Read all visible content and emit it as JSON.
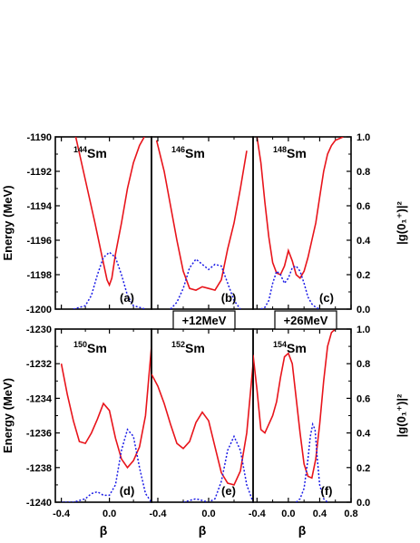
{
  "chart_data": {
    "type": "line",
    "layout": "2 rows x 3 columns, shared axes",
    "xlabel": "β",
    "x_ticks": [
      "-0.4",
      "0.0",
      "0.4",
      "0.8"
    ],
    "x_tick_values": [
      -0.4,
      0.0,
      0.4,
      0.8
    ],
    "rows": [
      {
        "ylabel": "Energy (MeV)",
        "ylim": [
          -1200,
          -1190
        ],
        "y_ticks": [
          "-1190",
          "-1192",
          "-1194",
          "-1196",
          "-1198",
          "-1200"
        ],
        "y_tick_values": [
          -1190,
          -1192,
          -1194,
          -1196,
          -1198,
          -1200
        ],
        "y2label": "|g(0₁⁺)|²",
        "y2lim": [
          0.0,
          1.0
        ],
        "y2_ticks": [
          "1.0",
          "0.8",
          "0.6",
          "0.4",
          "0.2",
          "0.0"
        ],
        "y2_tick_values": [
          1.0,
          0.8,
          0.6,
          0.4,
          0.2,
          0.0
        ]
      },
      {
        "ylabel": "Energy (MeV)",
        "ylim": [
          -1240,
          -1230
        ],
        "y_ticks": [
          "-1230",
          "-1232",
          "-1234",
          "-1236",
          "-1238",
          "-1240"
        ],
        "y_tick_values": [
          -1230,
          -1232,
          -1234,
          -1236,
          -1238,
          -1240
        ],
        "y2label": "|g(0₁⁺)|²",
        "y2lim": [
          0.0,
          1.0
        ],
        "y2_ticks": [
          "1.0",
          "0.8",
          "0.6",
          "0.4",
          "0.2",
          "0.0"
        ],
        "y2_tick_values": [
          1.0,
          0.8,
          0.6,
          0.4,
          0.2,
          0.0
        ]
      }
    ],
    "shift_labels": {
      "b": "+12MeV",
      "c": "+26MeV"
    },
    "series_style": {
      "energy": {
        "color": "#e8141b",
        "dash": "solid"
      },
      "wavefunction": {
        "color": "#1a1ae6",
        "dash": "dotted"
      }
    },
    "panels": [
      {
        "id": "a",
        "label": "(a)",
        "mass": "144",
        "element": "Sm",
        "row": 0,
        "col": 0,
        "xlim": [
          -0.45,
          0.35
        ],
        "energy": {
          "x": [
            -0.28,
            -0.2,
            -0.12,
            -0.06,
            -0.02,
            0.0,
            0.02,
            0.05,
            0.1,
            0.15,
            0.2,
            0.25,
            0.29
          ],
          "y": [
            -1190.0,
            -1192.5,
            -1195.0,
            -1197.0,
            -1198.3,
            -1198.6,
            -1198.2,
            -1196.8,
            -1195.0,
            -1193.0,
            -1191.5,
            -1190.5,
            -1190.0
          ]
        },
        "wavefunction": {
          "x": [
            -0.3,
            -0.2,
            -0.15,
            -0.1,
            -0.05,
            0.0,
            0.05,
            0.1,
            0.15,
            0.2,
            0.3
          ],
          "y": [
            0.0,
            0.02,
            0.08,
            0.2,
            0.3,
            0.33,
            0.3,
            0.2,
            0.08,
            0.02,
            0.0
          ]
        }
      },
      {
        "id": "b",
        "label": "(b)",
        "mass": "146",
        "element": "Sm",
        "row": 0,
        "col": 1,
        "xlim": [
          -0.45,
          0.35
        ],
        "energy": {
          "x": [
            -0.41,
            -0.35,
            -0.3,
            -0.25,
            -0.2,
            -0.15,
            -0.1,
            -0.05,
            0.0,
            0.05,
            0.1,
            0.15,
            0.2,
            0.25,
            0.3
          ],
          "y": [
            -1190.2,
            -1192.0,
            -1194.0,
            -1196.0,
            -1197.8,
            -1198.8,
            -1198.9,
            -1198.7,
            -1198.8,
            -1198.9,
            -1198.3,
            -1196.5,
            -1195.0,
            -1193.0,
            -1190.8
          ]
        },
        "wavefunction": {
          "x": [
            -0.3,
            -0.25,
            -0.2,
            -0.15,
            -0.1,
            -0.05,
            0.0,
            0.05,
            0.1,
            0.15,
            0.2,
            0.25
          ],
          "y": [
            0.0,
            0.04,
            0.12,
            0.24,
            0.29,
            0.26,
            0.23,
            0.26,
            0.25,
            0.15,
            0.05,
            0.0
          ]
        }
      },
      {
        "id": "c",
        "label": "(c)",
        "mass": "148",
        "element": "Sm",
        "row": 0,
        "col": 2,
        "xlim": [
          -0.45,
          0.8
        ],
        "energy": {
          "x": [
            -0.4,
            -0.35,
            -0.3,
            -0.25,
            -0.2,
            -0.15,
            -0.1,
            -0.05,
            0.0,
            0.05,
            0.1,
            0.15,
            0.2,
            0.25,
            0.3,
            0.35,
            0.4,
            0.45,
            0.5,
            0.55,
            0.6,
            0.7
          ],
          "y": [
            -1190.0,
            -1191.5,
            -1193.8,
            -1195.8,
            -1197.3,
            -1197.9,
            -1198.0,
            -1197.5,
            -1196.6,
            -1197.2,
            -1198.0,
            -1198.2,
            -1197.8,
            -1197.0,
            -1196.0,
            -1195.0,
            -1193.5,
            -1192.0,
            -1191.0,
            -1190.5,
            -1190.2,
            -1190.0
          ]
        },
        "wavefunction": {
          "x": [
            -0.35,
            -0.3,
            -0.25,
            -0.2,
            -0.15,
            -0.1,
            -0.05,
            0.0,
            0.05,
            0.1,
            0.15,
            0.2,
            0.25,
            0.3,
            0.35,
            0.4
          ],
          "y": [
            0.0,
            0.01,
            0.05,
            0.15,
            0.22,
            0.2,
            0.15,
            0.18,
            0.24,
            0.25,
            0.22,
            0.15,
            0.07,
            0.03,
            0.01,
            0.0
          ]
        }
      },
      {
        "id": "d",
        "label": "(d)",
        "mass": "150",
        "element": "Sm",
        "row": 1,
        "col": 0,
        "xlim": [
          -0.45,
          0.35
        ],
        "energy": {
          "x": [
            -0.4,
            -0.35,
            -0.3,
            -0.25,
            -0.2,
            -0.15,
            -0.1,
            -0.05,
            0.0,
            0.05,
            0.1,
            0.15,
            0.2,
            0.25,
            0.3,
            0.35
          ],
          "y": [
            -1232.0,
            -1233.8,
            -1235.3,
            -1236.5,
            -1236.6,
            -1236.0,
            -1235.2,
            -1234.3,
            -1234.7,
            -1236.3,
            -1237.5,
            -1238.0,
            -1237.6,
            -1236.8,
            -1235.0,
            -1231.0
          ]
        },
        "wavefunction": {
          "x": [
            -0.4,
            -0.3,
            -0.2,
            -0.15,
            -0.1,
            -0.05,
            0.0,
            0.05,
            0.1,
            0.15,
            0.2,
            0.25,
            0.3,
            0.35
          ],
          "y": [
            0.0,
            0.0,
            0.02,
            0.05,
            0.06,
            0.04,
            0.04,
            0.1,
            0.3,
            0.42,
            0.38,
            0.2,
            0.05,
            0.0
          ]
        }
      },
      {
        "id": "e",
        "label": "(e)",
        "mass": "152",
        "element": "Sm",
        "row": 1,
        "col": 1,
        "xlim": [
          -0.45,
          0.35
        ],
        "energy": {
          "x": [
            -0.45,
            -0.4,
            -0.35,
            -0.3,
            -0.25,
            -0.2,
            -0.15,
            -0.1,
            -0.05,
            0.0,
            0.05,
            0.1,
            0.15,
            0.2,
            0.25,
            0.3,
            0.35
          ],
          "y": [
            -1232.6,
            -1233.3,
            -1234.3,
            -1235.5,
            -1236.6,
            -1236.9,
            -1236.5,
            -1235.4,
            -1234.8,
            -1235.3,
            -1236.8,
            -1238.3,
            -1238.9,
            -1239.0,
            -1238.2,
            -1236.0,
            -1232.0
          ]
        },
        "wavefunction": {
          "x": [
            -0.2,
            -0.15,
            -0.1,
            -0.05,
            0.0,
            0.05,
            0.1,
            0.15,
            0.2,
            0.25,
            0.3,
            0.35
          ],
          "y": [
            0.0,
            0.01,
            0.02,
            0.01,
            0.0,
            0.02,
            0.12,
            0.3,
            0.38,
            0.3,
            0.1,
            0.0
          ]
        }
      },
      {
        "id": "f",
        "label": "(f)",
        "mass": "154",
        "element": "Sm",
        "row": 1,
        "col": 2,
        "xlim": [
          -0.45,
          0.8
        ],
        "energy": {
          "x": [
            -0.45,
            -0.4,
            -0.35,
            -0.3,
            -0.25,
            -0.2,
            -0.15,
            -0.1,
            -0.05,
            0.0,
            0.05,
            0.1,
            0.15,
            0.2,
            0.25,
            0.3,
            0.35,
            0.4,
            0.45,
            0.5,
            0.55,
            0.6
          ],
          "y": [
            -1231.5,
            -1233.5,
            -1235.8,
            -1236.0,
            -1235.5,
            -1235.0,
            -1234.2,
            -1232.8,
            -1231.6,
            -1231.4,
            -1232.0,
            -1234.0,
            -1236.0,
            -1237.8,
            -1238.5,
            -1238.6,
            -1237.5,
            -1235.5,
            -1233.0,
            -1231.0,
            -1230.2,
            -1230.0
          ]
        },
        "wavefunction": {
          "x": [
            0.1,
            0.15,
            0.2,
            0.25,
            0.28,
            0.31,
            0.34,
            0.37,
            0.4,
            0.45,
            0.5
          ],
          "y": [
            0.0,
            0.02,
            0.08,
            0.25,
            0.38,
            0.45,
            0.42,
            0.25,
            0.1,
            0.02,
            0.0
          ]
        }
      }
    ]
  }
}
